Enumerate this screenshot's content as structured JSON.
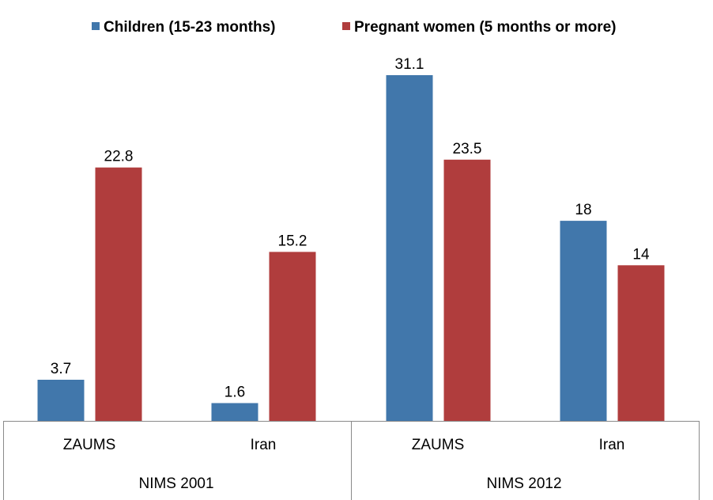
{
  "chart_data": {
    "type": "bar",
    "legend_position": "top",
    "grid": false,
    "ylim": [
      0,
      35
    ],
    "groups": [
      {
        "label": "NIMS 2001",
        "categories": [
          "ZAUMS",
          "Iran"
        ]
      },
      {
        "label": "NIMS 2012",
        "categories": [
          "ZAUMS",
          "Iran"
        ]
      }
    ],
    "categories": [
      "ZAUMS",
      "Iran",
      "ZAUMS",
      "Iran"
    ],
    "series": [
      {
        "name": "Children (15-23 months)",
        "color": "#4177AB",
        "values": [
          3.7,
          1.6,
          31.1,
          18
        ],
        "labels": [
          "3.7",
          "1.6",
          "31.1",
          "18"
        ]
      },
      {
        "name": "Pregnant women (5 months or more)",
        "color": "#B03D3D",
        "values": [
          22.8,
          15.2,
          23.5,
          14
        ],
        "labels": [
          "22.8",
          "15.2",
          "23.5",
          "14"
        ]
      }
    ]
  }
}
